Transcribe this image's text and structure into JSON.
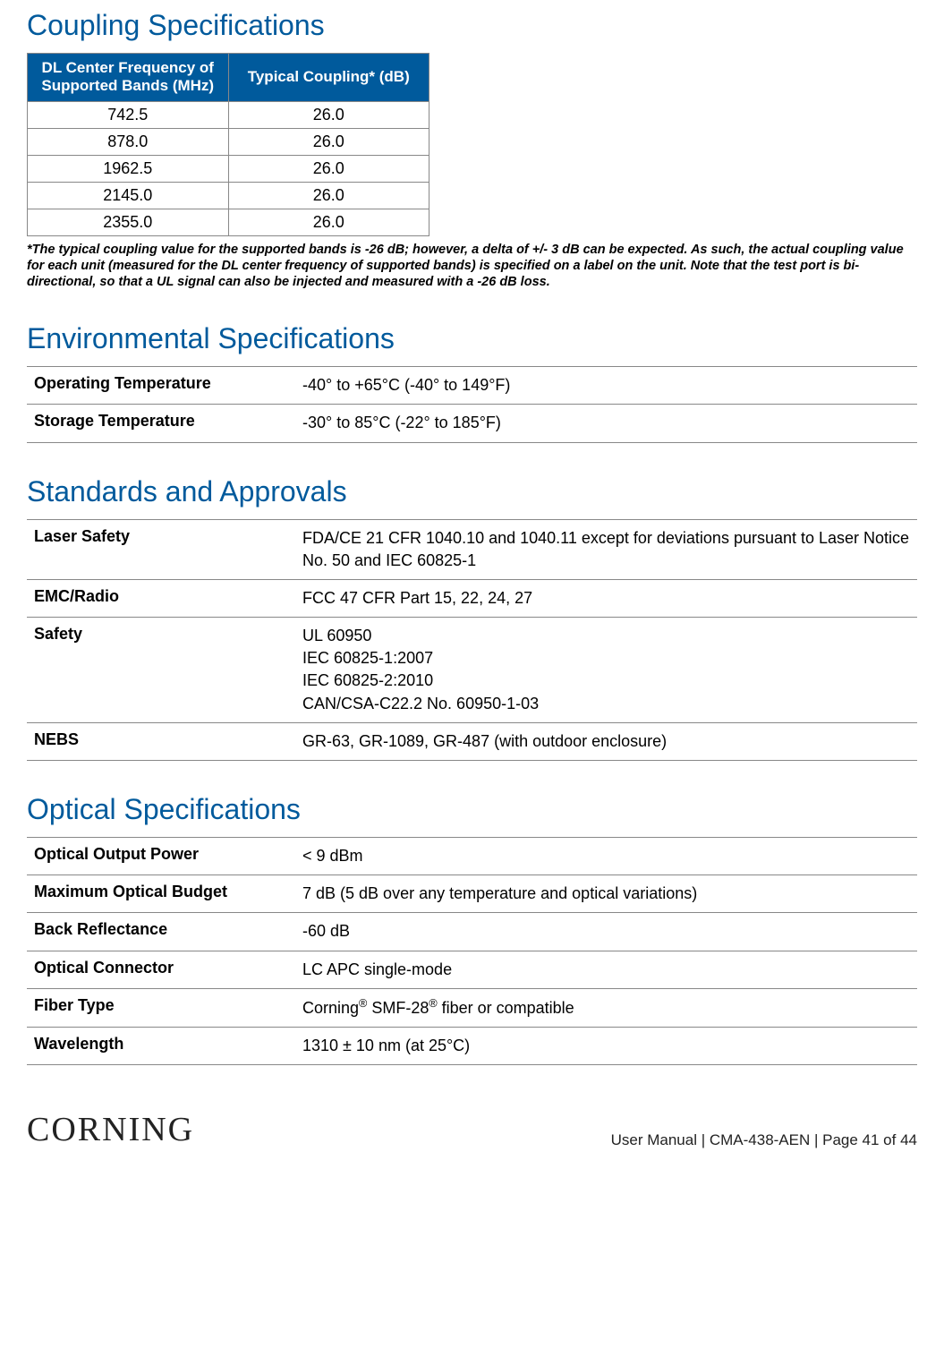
{
  "heading_color": "#005a9c",
  "table_header_bg": "#005a9c",
  "coupling": {
    "title": "Coupling Specifications",
    "headers": [
      "DL Center Frequency of Supported Bands (MHz)",
      "Typical Coupling* (dB)"
    ],
    "rows": [
      [
        "742.5",
        "26.0"
      ],
      [
        "878.0",
        "26.0"
      ],
      [
        "1962.5",
        "26.0"
      ],
      [
        "2145.0",
        "26.0"
      ],
      [
        "2355.0",
        "26.0"
      ]
    ],
    "footnote": "*The typical coupling value for the supported bands is -26 dB; however, a delta of +/- 3 dB can be expected. As such, the actual coupling value for each unit (measured for the DL center frequency of supported bands) is specified on a label on the unit. Note that the test port is bi-directional, so that a UL signal can also be injected and measured with a -26 dB loss."
  },
  "environmental": {
    "title": "Environmental Specifications",
    "rows": [
      {
        "label": "Operating Temperature",
        "value": "-40° to +65°C (-40° to 149°F)"
      },
      {
        "label": "Storage Temperature",
        "value": "-30° to 85°C (-22° to 185°F)"
      }
    ]
  },
  "standards": {
    "title": "Standards and Approvals",
    "rows": [
      {
        "label": "Laser Safety",
        "value": "FDA/CE 21 CFR 1040.10 and 1040.11 except for deviations pursuant to Laser Notice No. 50 and IEC 60825-1"
      },
      {
        "label": "EMC/Radio",
        "value": "FCC 47 CFR Part 15, 22, 24, 27"
      },
      {
        "label": "Safety",
        "value": "UL 60950\nIEC 60825-1:2007\nIEC 60825-2:2010\nCAN/CSA-C22.2 No. 60950-1-03"
      },
      {
        "label": "NEBS",
        "value": "GR-63, GR-1089, GR-487 (with outdoor enclosure)"
      }
    ]
  },
  "optical": {
    "title": "Optical Specifications",
    "rows": [
      {
        "label": "Optical Output Power",
        "value": "< 9 dBm"
      },
      {
        "label": "Maximum Optical Budget",
        "value": "7 dB (5 dB over any temperature and optical variations)"
      },
      {
        "label": "Back Reflectance",
        "value": "-60 dB"
      },
      {
        "label": "Optical Connector",
        "value": "LC APC single-mode"
      },
      {
        "label": "Fiber Type",
        "value": "Corning® SMF-28® fiber or compatible"
      },
      {
        "label": "Wavelength",
        "value": "1310 ± 10 nm (at 25°C)"
      }
    ]
  },
  "footer": {
    "brand": "CORNING",
    "text": "User Manual | CMA-438-AEN | Page 41 of 44"
  }
}
